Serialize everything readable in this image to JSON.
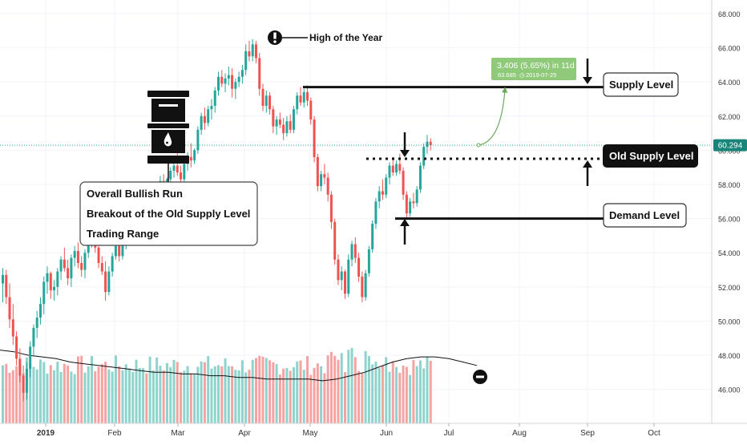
{
  "chart_data": {
    "type": "candlestick",
    "title": "",
    "ylim": [
      44.5,
      68.8
    ],
    "y_ticks": [
      "68.000",
      "66.000",
      "64.000",
      "62.000",
      "60.000",
      "58.000",
      "56.000",
      "54.000",
      "52.000",
      "50.000",
      "48.000",
      "46.000"
    ],
    "x_ticks": [
      "2019",
      "Feb",
      "Mar",
      "Apr",
      "May",
      "Jun",
      "Jul",
      "Aug",
      "Sep",
      "Oct"
    ],
    "last_price": "60.294",
    "series": [
      {
        "name": "price",
        "kind": "candles"
      },
      {
        "name": "volume",
        "kind": "bars"
      },
      {
        "name": "volume average",
        "kind": "line"
      }
    ],
    "levels": {
      "supply": 63.7,
      "old_supply": 59.5,
      "demand": 56.0,
      "high_of_year": 66.5
    },
    "candles_daily": [
      [
        52.2,
        53.1,
        51.1,
        52.7
      ],
      [
        52.7,
        53.0,
        51.0,
        51.4
      ],
      [
        51.4,
        52.2,
        49.6,
        50.1
      ],
      [
        50.1,
        51.0,
        48.6,
        49.1
      ],
      [
        49.1,
        49.4,
        47.4,
        47.8
      ],
      [
        47.8,
        48.4,
        46.4,
        46.8
      ],
      [
        46.8,
        47.4,
        45.3,
        45.8
      ],
      [
        45.8,
        47.6,
        45.4,
        47.2
      ],
      [
        47.2,
        48.8,
        46.7,
        48.5
      ],
      [
        48.5,
        49.8,
        47.9,
        49.6
      ],
      [
        49.6,
        50.6,
        49.0,
        50.2
      ],
      [
        50.2,
        51.4,
        49.8,
        51.0
      ],
      [
        51.0,
        52.6,
        50.4,
        52.3
      ],
      [
        52.3,
        53.2,
        51.6,
        52.8
      ],
      [
        52.8,
        52.9,
        51.3,
        51.8
      ],
      [
        51.8,
        52.4,
        51.2,
        52.0
      ],
      [
        52.0,
        53.1,
        51.5,
        52.9
      ],
      [
        52.9,
        53.8,
        52.4,
        53.6
      ],
      [
        53.6,
        54.3,
        52.9,
        53.1
      ],
      [
        53.1,
        53.6,
        52.1,
        52.5
      ],
      [
        52.5,
        53.9,
        52.0,
        53.7
      ],
      [
        53.7,
        54.4,
        53.2,
        54.1
      ],
      [
        54.1,
        54.6,
        53.1,
        53.4
      ],
      [
        53.4,
        53.8,
        52.6,
        53.0
      ],
      [
        53.0,
        54.2,
        52.5,
        54.0
      ],
      [
        54.0,
        54.9,
        53.7,
        54.7
      ],
      [
        54.7,
        55.3,
        54.3,
        55.0
      ],
      [
        55.0,
        55.5,
        54.0,
        54.3
      ],
      [
        54.3,
        54.5,
        53.1,
        53.4
      ],
      [
        53.4,
        53.8,
        52.7,
        52.9
      ],
      [
        52.9,
        53.5,
        51.2,
        51.7
      ],
      [
        51.7,
        53.2,
        51.5,
        52.9
      ],
      [
        52.9,
        54.0,
        52.6,
        53.8
      ],
      [
        53.8,
        54.6,
        53.6,
        54.4
      ],
      [
        54.4,
        54.8,
        53.5,
        53.8
      ],
      [
        53.8,
        54.7,
        53.6,
        54.6
      ],
      [
        54.6,
        55.5,
        54.2,
        55.3
      ],
      [
        55.3,
        56.0,
        55.0,
        55.7
      ],
      [
        55.7,
        56.5,
        55.4,
        56.2
      ],
      [
        56.2,
        56.9,
        55.7,
        56.4
      ],
      [
        56.4,
        57.2,
        56.2,
        57.0
      ],
      [
        57.0,
        57.6,
        56.6,
        57.2
      ],
      [
        57.2,
        57.7,
        56.2,
        56.6
      ],
      [
        56.6,
        57.3,
        56.4,
        57.1
      ],
      [
        57.1,
        57.8,
        56.9,
        57.5
      ],
      [
        57.5,
        58.1,
        57.0,
        57.8
      ],
      [
        57.8,
        58.5,
        57.5,
        58.2
      ],
      [
        58.2,
        58.6,
        57.4,
        57.7
      ],
      [
        57.7,
        58.4,
        57.5,
        58.3
      ],
      [
        58.3,
        59.0,
        58.0,
        58.8
      ],
      [
        58.8,
        59.4,
        58.4,
        59.1
      ],
      [
        59.1,
        59.9,
        58.5,
        58.7
      ],
      [
        58.7,
        59.1,
        57.9,
        58.3
      ],
      [
        58.3,
        59.4,
        58.1,
        59.2
      ],
      [
        59.2,
        59.9,
        58.8,
        59.6
      ],
      [
        59.6,
        60.4,
        59.0,
        59.4
      ],
      [
        59.4,
        60.1,
        59.2,
        60.0
      ],
      [
        60.0,
        61.4,
        59.8,
        61.2
      ],
      [
        61.2,
        62.2,
        60.9,
        62.0
      ],
      [
        62.0,
        62.5,
        61.2,
        61.6
      ],
      [
        61.6,
        62.6,
        61.4,
        62.4
      ],
      [
        62.4,
        63.0,
        61.8,
        62.6
      ],
      [
        62.6,
        63.7,
        62.2,
        63.5
      ],
      [
        63.5,
        64.6,
        63.2,
        64.3
      ],
      [
        64.3,
        64.7,
        63.7,
        63.9
      ],
      [
        63.9,
        64.5,
        63.4,
        64.2
      ],
      [
        64.2,
        64.9,
        63.8,
        64.4
      ],
      [
        64.4,
        64.8,
        63.1,
        63.6
      ],
      [
        63.6,
        64.2,
        63.0,
        64.0
      ],
      [
        64.0,
        64.6,
        63.7,
        64.3
      ],
      [
        64.3,
        65.0,
        63.9,
        64.7
      ],
      [
        64.7,
        66.2,
        64.4,
        65.8
      ],
      [
        65.8,
        66.4,
        65.2,
        65.5
      ],
      [
        65.5,
        66.5,
        65.2,
        66.2
      ],
      [
        66.2,
        66.4,
        65.1,
        65.4
      ],
      [
        65.4,
        65.7,
        63.2,
        63.6
      ],
      [
        63.6,
        63.9,
        62.3,
        62.6
      ],
      [
        62.6,
        63.5,
        62.2,
        63.2
      ],
      [
        63.2,
        63.4,
        62.1,
        62.4
      ],
      [
        62.4,
        62.6,
        61.0,
        61.4
      ],
      [
        61.4,
        62.0,
        60.9,
        61.8
      ],
      [
        61.8,
        62.2,
        61.3,
        61.5
      ],
      [
        61.5,
        61.9,
        60.6,
        61.0
      ],
      [
        61.0,
        62.0,
        60.8,
        61.7
      ],
      [
        61.7,
        62.1,
        61.0,
        61.2
      ],
      [
        61.2,
        62.6,
        61.0,
        62.4
      ],
      [
        62.4,
        63.4,
        62.1,
        63.2
      ],
      [
        63.2,
        63.7,
        62.6,
        62.8
      ],
      [
        62.8,
        63.6,
        62.5,
        63.4
      ],
      [
        63.4,
        63.8,
        62.6,
        62.9
      ],
      [
        62.9,
        63.1,
        61.5,
        61.8
      ],
      [
        61.8,
        62.0,
        59.3,
        59.6
      ],
      [
        59.6,
        59.8,
        57.6,
        57.9
      ],
      [
        57.9,
        58.8,
        57.6,
        58.6
      ],
      [
        58.6,
        59.2,
        58.0,
        58.4
      ],
      [
        58.4,
        58.7,
        57.0,
        57.4
      ],
      [
        57.4,
        57.6,
        55.4,
        55.8
      ],
      [
        55.8,
        56.0,
        53.3,
        53.6
      ],
      [
        53.6,
        53.9,
        52.1,
        52.4
      ],
      [
        52.4,
        53.2,
        51.8,
        52.9
      ],
      [
        52.9,
        53.0,
        51.3,
        51.6
      ],
      [
        51.6,
        53.9,
        51.4,
        53.6
      ],
      [
        53.6,
        54.7,
        53.2,
        54.5
      ],
      [
        54.5,
        54.9,
        53.4,
        53.7
      ],
      [
        53.7,
        54.0,
        52.3,
        52.6
      ],
      [
        52.6,
        52.9,
        51.1,
        51.4
      ],
      [
        51.4,
        53.0,
        51.2,
        52.8
      ],
      [
        52.8,
        54.4,
        52.6,
        54.2
      ],
      [
        54.2,
        55.9,
        54.0,
        55.7
      ],
      [
        55.7,
        57.2,
        55.4,
        57.0
      ],
      [
        57.0,
        57.9,
        56.6,
        57.6
      ],
      [
        57.6,
        58.3,
        57.1,
        57.4
      ],
      [
        57.4,
        58.6,
        57.2,
        58.4
      ],
      [
        58.4,
        59.3,
        58.0,
        59.1
      ],
      [
        59.1,
        59.6,
        58.5,
        58.7
      ],
      [
        58.7,
        59.4,
        58.5,
        59.2
      ],
      [
        59.2,
        59.8,
        58.6,
        58.8
      ],
      [
        58.8,
        59.0,
        57.1,
        57.4
      ],
      [
        57.4,
        57.6,
        56.0,
        56.3
      ],
      [
        56.3,
        57.2,
        56.1,
        57.0
      ],
      [
        57.0,
        57.5,
        56.6,
        56.9
      ],
      [
        56.9,
        57.9,
        56.7,
        57.7
      ],
      [
        57.7,
        59.3,
        57.5,
        59.1
      ],
      [
        59.1,
        60.4,
        58.9,
        60.2
      ],
      [
        60.2,
        60.9,
        59.8,
        60.5
      ],
      [
        60.5,
        60.7,
        60.0,
        60.3
      ]
    ],
    "volume_average": [
      48.3,
      48.2,
      48.0,
      47.9,
      47.8,
      47.6,
      47.5,
      47.4,
      47.3,
      47.2,
      47.1,
      47.0,
      47.0,
      46.9,
      46.9,
      46.8,
      46.8,
      46.7,
      46.7,
      46.6,
      46.6,
      46.6,
      46.6,
      46.5,
      46.6,
      46.8,
      47.0,
      47.3,
      47.6,
      47.8,
      47.9,
      47.9,
      47.8,
      47.6,
      47.4
    ],
    "annotations": {
      "high_label": "High of the Year",
      "callout_lines": [
        "Overall Bullish Run",
        "Breakout of the Old Supply Level",
        "Trading Range"
      ],
      "supply_label": "Supply Level",
      "old_supply_label": "Old Supply Level",
      "demand_label": "Demand Level",
      "measure_main": "3.406 (5.65%) in 11d",
      "measure_sub": "63.685",
      "measure_date": "2019-07-25"
    },
    "colors": {
      "up": "#26a69a",
      "down": "#ef5350",
      "vol_up": "#8fd3cd",
      "vol_down": "#f5a3a1",
      "measure": "#8fc97a",
      "price_line": "#26a69a",
      "price_tag": "#19857a"
    }
  }
}
